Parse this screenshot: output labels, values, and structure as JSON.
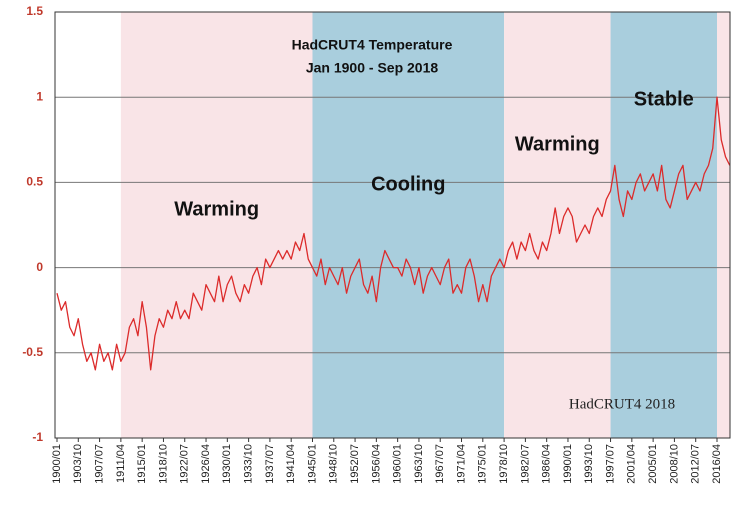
{
  "chart_data": {
    "type": "line",
    "title": "HadCRUT4 Temperature",
    "subtitle": "Jan 1900 - Sep 2018",
    "watermark": "HadCRUT4 2018",
    "color": "#dc2b2b",
    "ylim": [
      -1,
      1.5
    ],
    "yticks": [
      -1,
      -0.5,
      0,
      0.5,
      1,
      1.5
    ],
    "grid": true,
    "regions": [
      {
        "start": "1911/04",
        "end": "1945/01",
        "color": "#f9e4e7",
        "label": "Warming"
      },
      {
        "start": "1945/01",
        "end": "1978/10",
        "color": "#a9cedd",
        "label": "Cooling"
      },
      {
        "start": "1978/10",
        "end": "1997/07",
        "color": "#f9e4e7",
        "label": "Warming"
      },
      {
        "start": "1997/07",
        "end": "2016/04",
        "color": "#a9cedd",
        "label": "Stable"
      },
      {
        "start": "2016/04",
        "color": "#f9e4e7"
      }
    ],
    "categories": [
      "1900/01",
      null,
      null,
      null,
      null,
      "1903/10",
      null,
      null,
      null,
      null,
      "1907/07",
      null,
      null,
      null,
      null,
      "1911/04",
      null,
      null,
      null,
      null,
      "1915/01",
      null,
      null,
      null,
      null,
      "1918/10",
      null,
      null,
      null,
      null,
      "1922/07",
      null,
      null,
      null,
      null,
      "1926/04",
      null,
      null,
      null,
      null,
      "1930/01",
      null,
      null,
      null,
      null,
      "1933/10",
      null,
      null,
      null,
      null,
      "1937/07",
      null,
      null,
      null,
      null,
      "1941/04",
      null,
      null,
      null,
      null,
      "1945/01",
      null,
      null,
      null,
      null,
      "1948/10",
      null,
      null,
      null,
      null,
      "1952/07",
      null,
      null,
      null,
      null,
      "1956/04",
      null,
      null,
      null,
      null,
      "1960/01",
      null,
      null,
      null,
      null,
      "1963/10",
      null,
      null,
      null,
      null,
      "1967/07",
      null,
      null,
      null,
      null,
      "1971/04",
      null,
      null,
      null,
      null,
      "1975/01",
      null,
      null,
      null,
      null,
      "1978/10",
      null,
      null,
      null,
      null,
      "1982/07",
      null,
      null,
      null,
      null,
      "1986/04",
      null,
      null,
      null,
      null,
      "1990/01",
      null,
      null,
      null,
      null,
      "1993/10",
      null,
      null,
      null,
      null,
      "1997/07",
      null,
      null,
      null,
      null,
      "2001/04",
      null,
      null,
      null,
      null,
      "2005/01",
      null,
      null,
      null,
      null,
      "2008/10",
      null,
      null,
      null,
      null,
      "2012/07",
      null,
      null,
      null,
      null,
      "2016/04",
      null,
      null,
      null
    ],
    "values": [
      -0.15,
      -0.25,
      -0.2,
      -0.35,
      -0.4,
      -0.3,
      -0.45,
      -0.55,
      -0.5,
      -0.6,
      -0.45,
      -0.55,
      -0.5,
      -0.6,
      -0.45,
      -0.55,
      -0.5,
      -0.35,
      -0.3,
      -0.4,
      -0.2,
      -0.35,
      -0.6,
      -0.4,
      -0.3,
      -0.35,
      -0.25,
      -0.3,
      -0.2,
      -0.3,
      -0.25,
      -0.3,
      -0.15,
      -0.2,
      -0.25,
      -0.1,
      -0.15,
      -0.2,
      -0.05,
      -0.2,
      -0.1,
      -0.05,
      -0.15,
      -0.2,
      -0.1,
      -0.15,
      -0.05,
      0,
      -0.1,
      0.05,
      0,
      0.05,
      0.1,
      0.05,
      0.1,
      0.05,
      0.15,
      0.1,
      0.2,
      0.05,
      0,
      -0.05,
      0.05,
      -0.1,
      0,
      -0.05,
      -0.1,
      0,
      -0.15,
      -0.05,
      0,
      0.05,
      -0.1,
      -0.15,
      -0.05,
      -0.2,
      0,
      0.1,
      0.05,
      0,
      0,
      -0.05,
      0.05,
      0,
      -0.1,
      0,
      -0.15,
      -0.05,
      0,
      -0.05,
      -0.1,
      0,
      0.05,
      -0.15,
      -0.1,
      -0.15,
      0,
      0.05,
      -0.05,
      -0.2,
      -0.1,
      -0.2,
      -0.05,
      0,
      0.05,
      0,
      0.1,
      0.15,
      0.05,
      0.15,
      0.1,
      0.2,
      0.1,
      0.05,
      0.15,
      0.1,
      0.2,
      0.35,
      0.2,
      0.3,
      0.35,
      0.3,
      0.15,
      0.2,
      0.25,
      0.2,
      0.3,
      0.35,
      0.3,
      0.4,
      0.45,
      0.6,
      0.4,
      0.3,
      0.45,
      0.4,
      0.5,
      0.55,
      0.45,
      0.5,
      0.55,
      0.45,
      0.6,
      0.4,
      0.35,
      0.45,
      0.55,
      0.6,
      0.4,
      0.45,
      0.5,
      0.45,
      0.55,
      0.6,
      0.7,
      1,
      0.75,
      0.65,
      0.6
    ]
  }
}
